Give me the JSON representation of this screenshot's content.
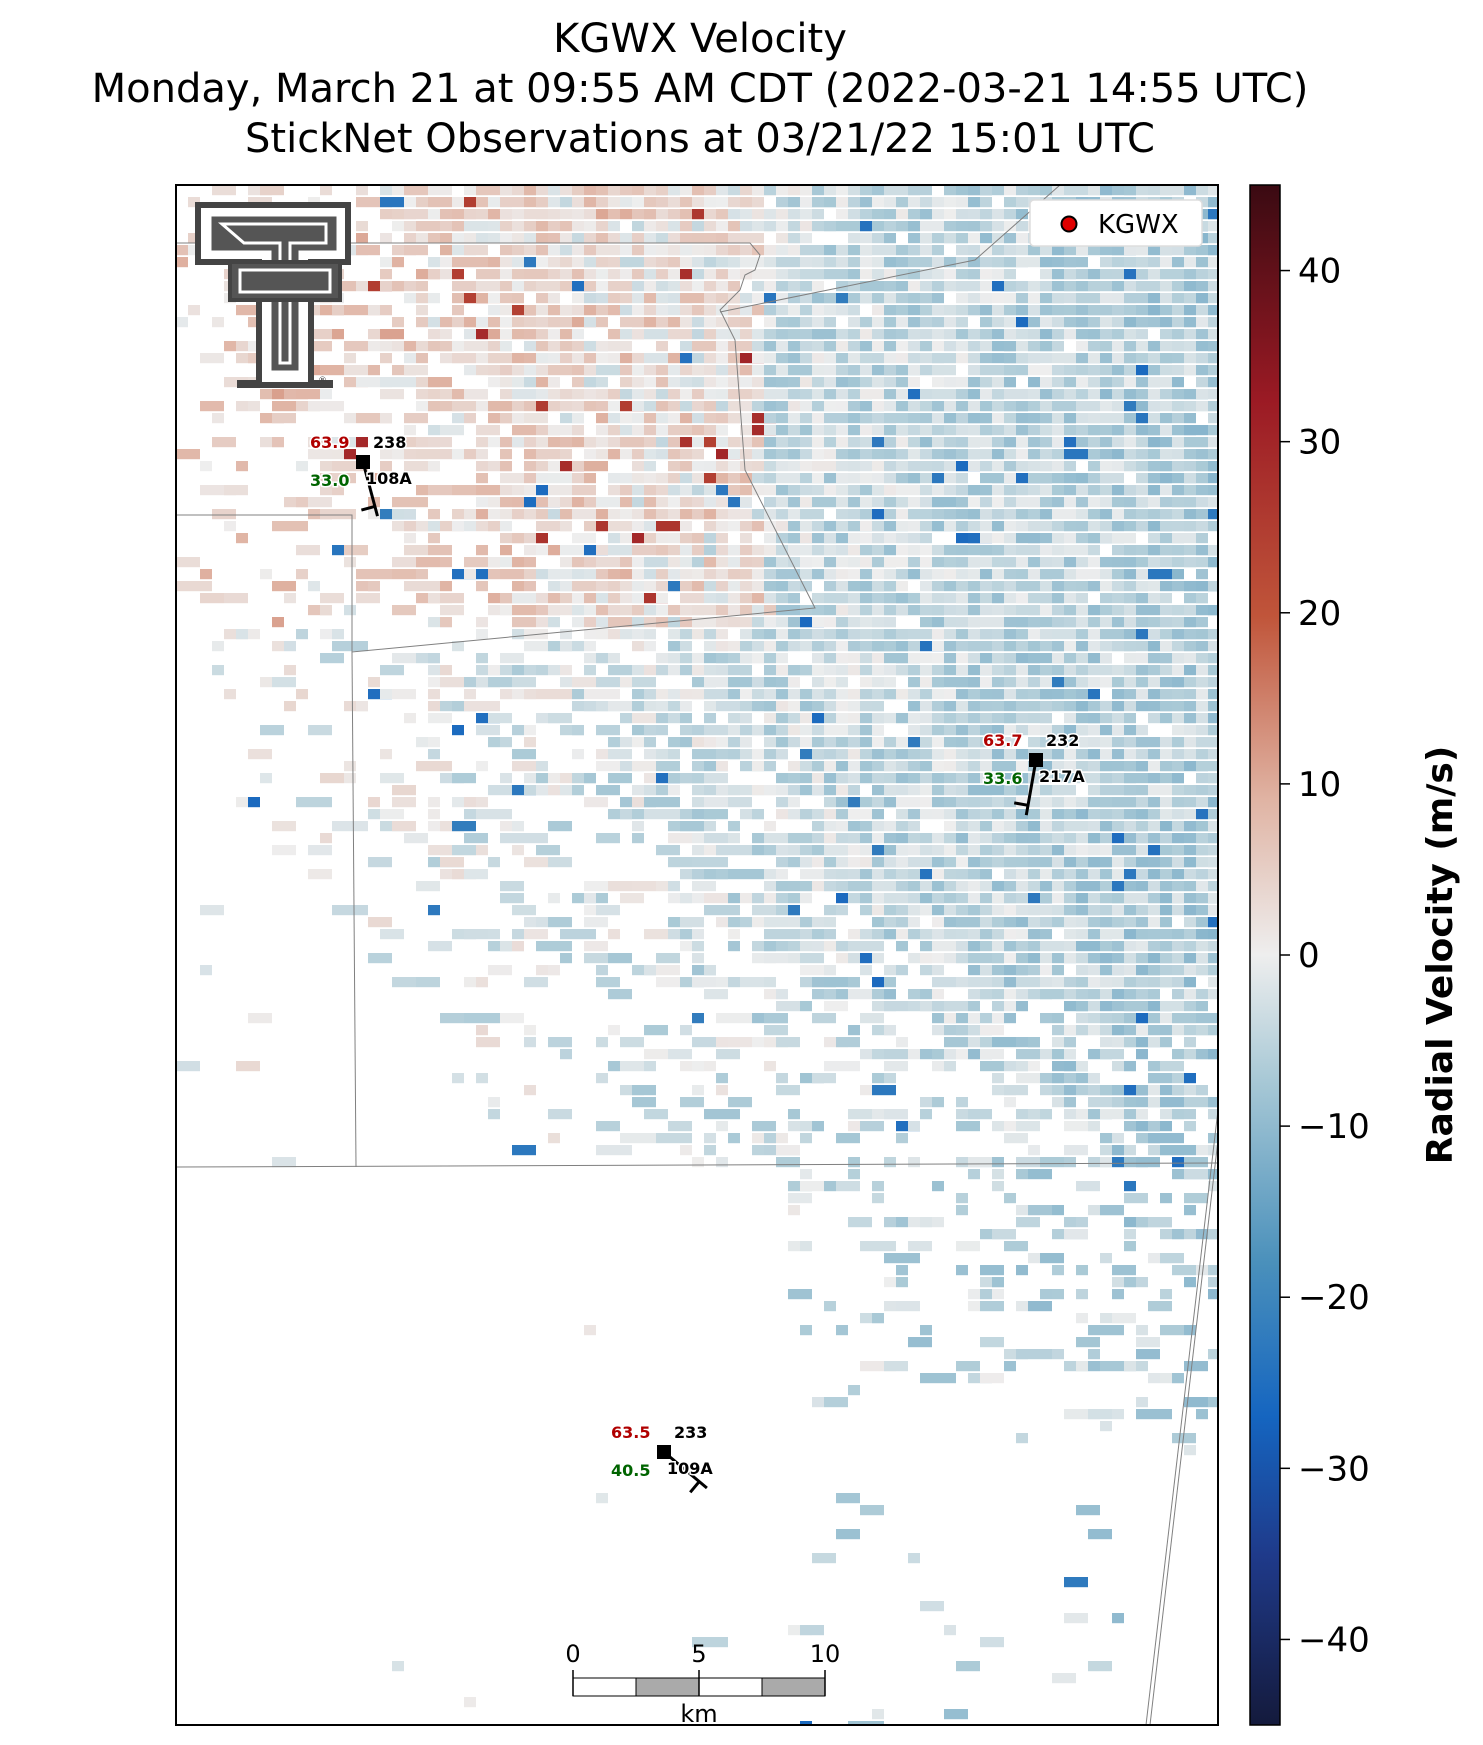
{
  "title": {
    "line1": "KGWX Velocity",
    "line2": "Monday, March 21 at 09:55 AM CDT (2022-03-21 14:55 UTC)",
    "line3": "StickNet Observations at 03/21/22 15:01 UTC"
  },
  "legend": {
    "label": "KGWX",
    "marker_color": "#e00000"
  },
  "stations": [
    {
      "id": "108A",
      "temperature": "63.9",
      "dewpoint": "33.0",
      "pressure": "238",
      "wind_from_deg": 165
    },
    {
      "id": "217A",
      "temperature": "63.7",
      "dewpoint": "33.6",
      "pressure": "232",
      "wind_from_deg": 190
    },
    {
      "id": "109A",
      "temperature": "63.5",
      "dewpoint": "40.5",
      "pressure": "233",
      "wind_from_deg": 130
    }
  ],
  "colorbar": {
    "label": "Radial Velocity (m/s)",
    "min": -45,
    "max": 45,
    "ticks": [
      "40",
      "30",
      "20",
      "10",
      "0",
      "−10",
      "−20",
      "−30",
      "−40"
    ],
    "tick_values": [
      40,
      30,
      20,
      10,
      0,
      -10,
      -20,
      -30,
      -40
    ],
    "colors": [
      "#141a3c",
      "#1f3a8a",
      "#1565c0",
      "#4a90bb",
      "#a9c9d6",
      "#eeeeee",
      "#e0b4a4",
      "#c0553a",
      "#9b1a24",
      "#3a0a12"
    ]
  },
  "scalebar": {
    "ticks": [
      "0",
      "5",
      "10"
    ],
    "unit": "km"
  },
  "logo": {
    "name": "texas-tech-double-t-logo"
  }
}
